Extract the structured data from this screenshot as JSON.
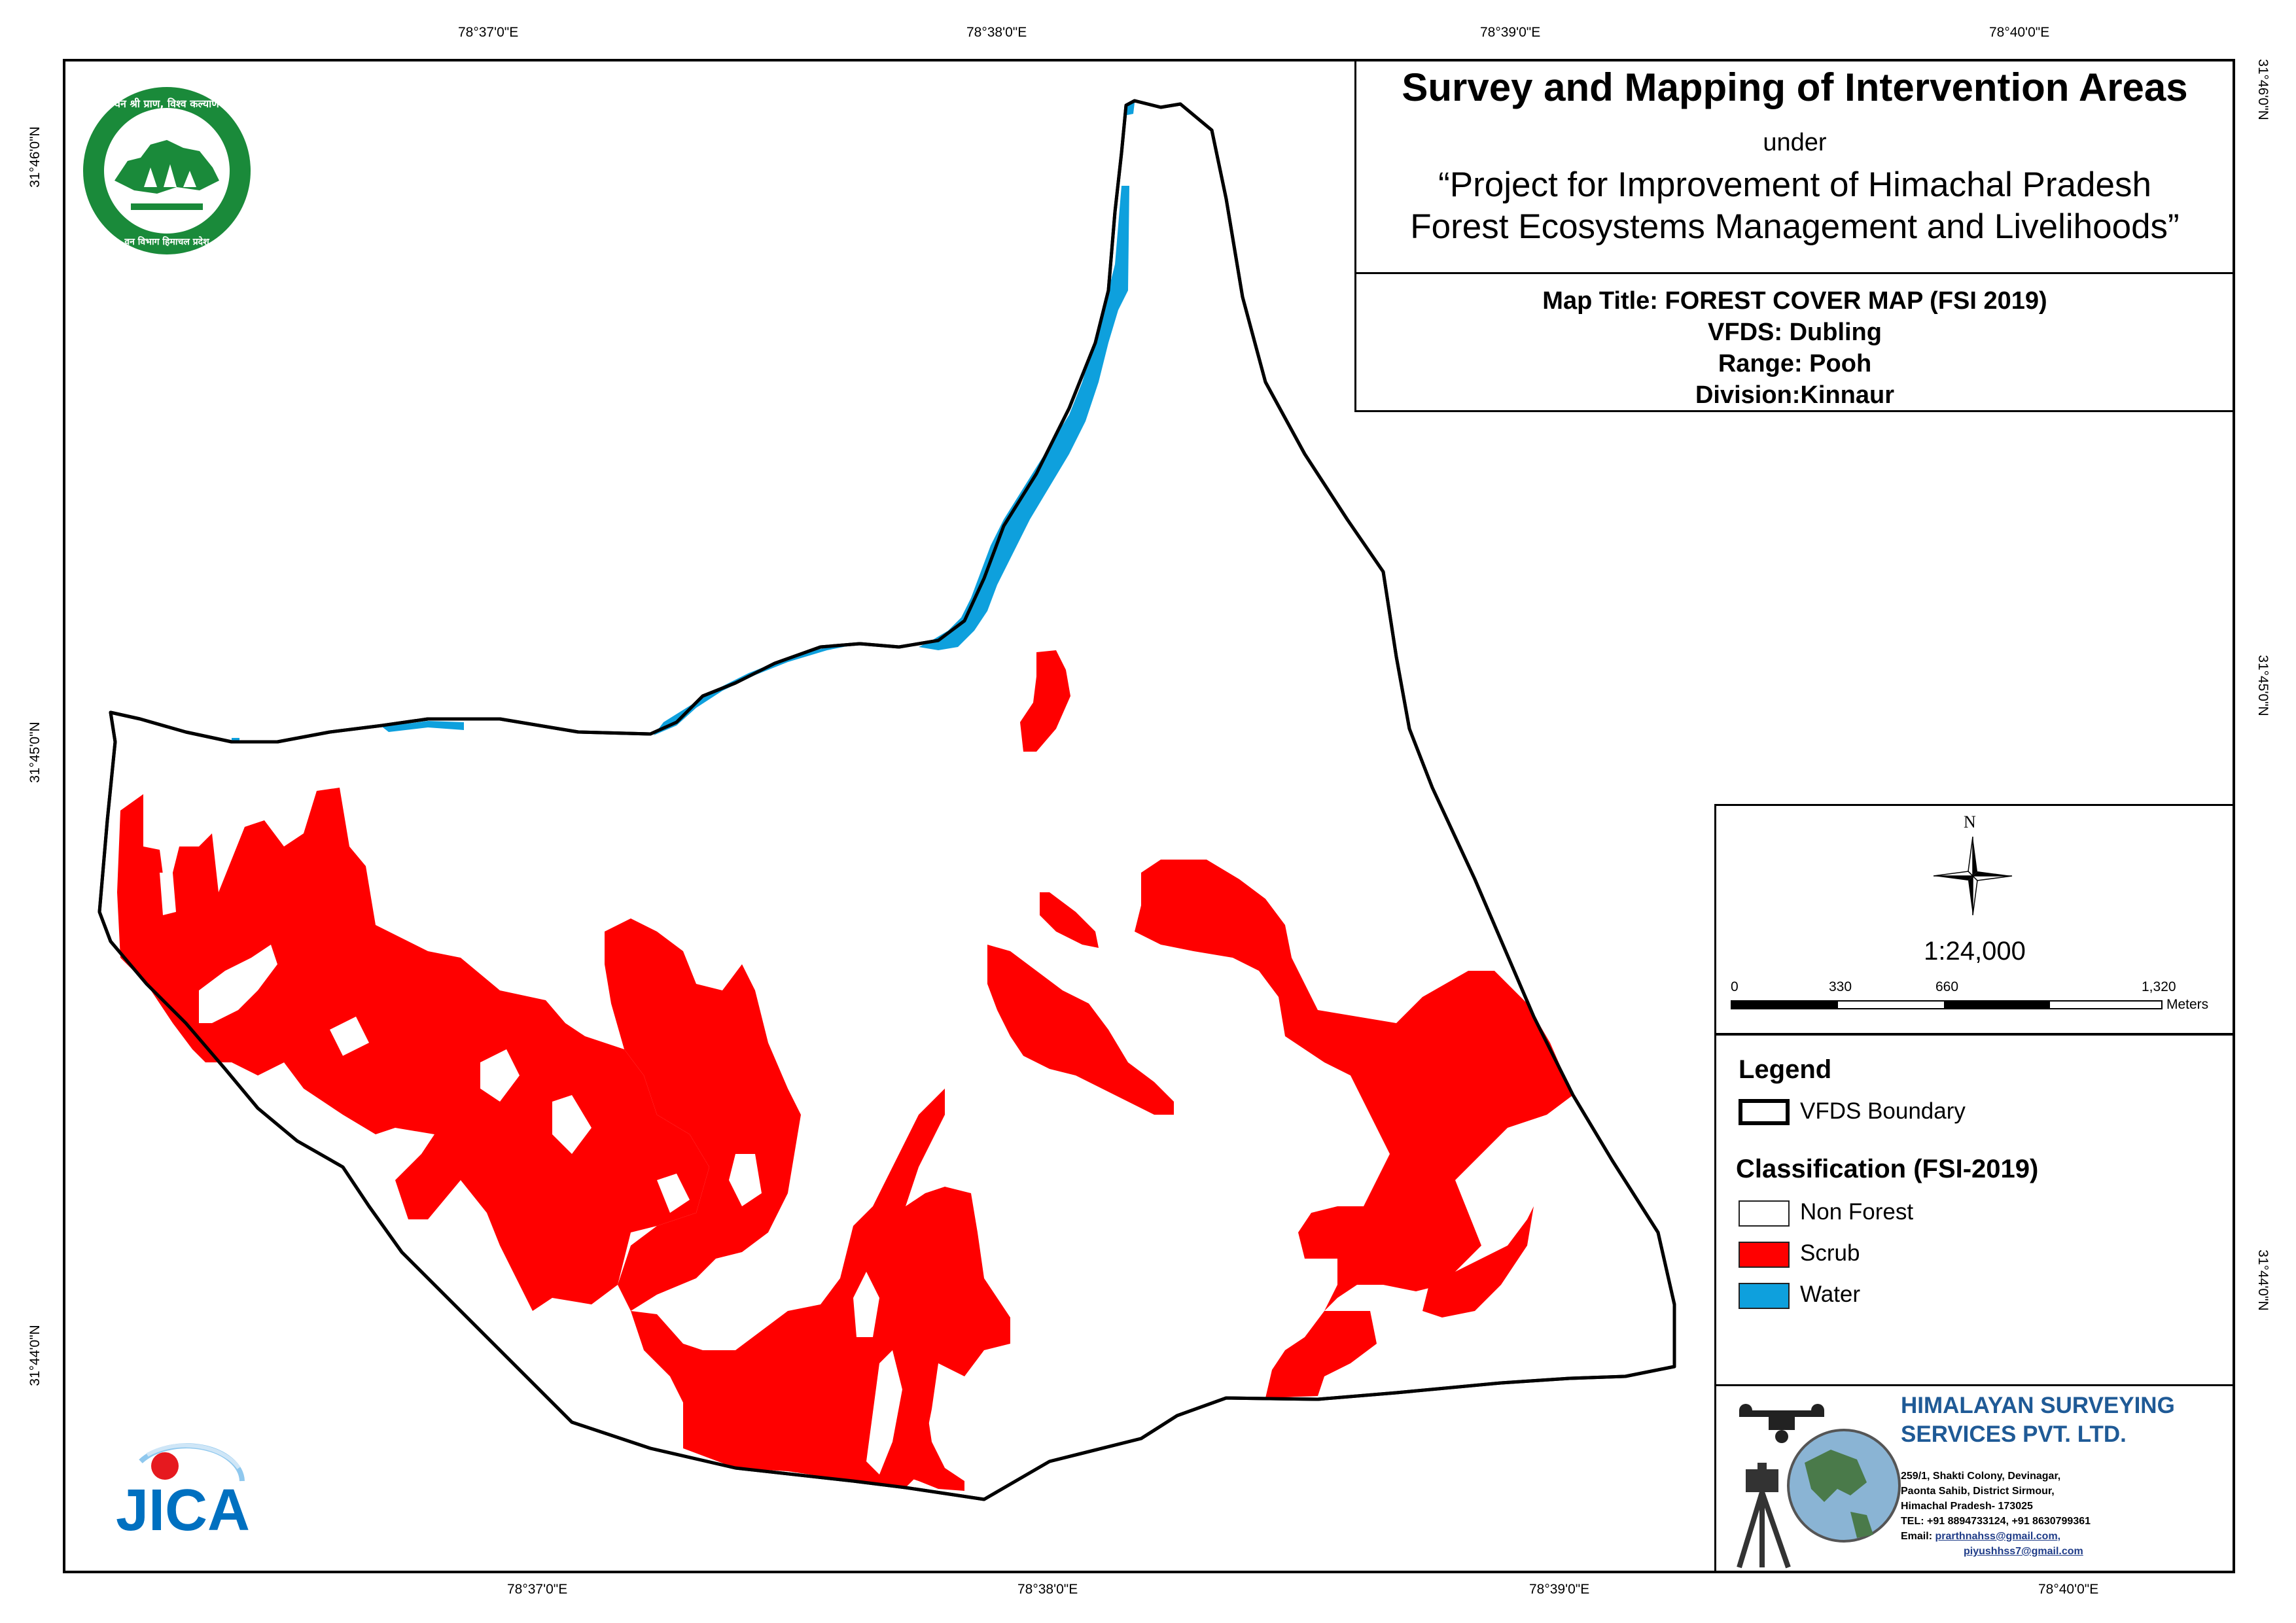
{
  "graticule": {
    "top": [
      "78°37'0\"E",
      "78°38'0\"E",
      "78°39'0\"E",
      "78°40'0\"E"
    ],
    "bottom": [
      "78°37'0\"E",
      "78°38'0\"E",
      "78°39'0\"E",
      "78°40'0\"E"
    ],
    "left": [
      "31°46'0\"N",
      "31°45'0\"N",
      "31°44'0\"N"
    ],
    "right": [
      "31°46'0\"N",
      "31°45'0\"N",
      "31°44'0\"N"
    ]
  },
  "title": {
    "main": "Survey and Mapping of Intervention Areas",
    "under": "under",
    "project_line1": "“Project for Improvement of Himachal Pradesh",
    "project_line2": "Forest Ecosystems Management and Livelihoods”"
  },
  "map_info": {
    "map_title": "Map Title: FOREST COVER MAP (FSI 2019)",
    "vfds": "VFDS: Dubling",
    "range": "Range: Pooh",
    "division": "Division:Kinnaur"
  },
  "north_arrow": {
    "letter": "N"
  },
  "scale": {
    "ratio": "1:24,000",
    "labels": [
      "0",
      "330",
      "660",
      "1,320"
    ],
    "unit": "Meters"
  },
  "legend": {
    "heading": "Legend",
    "boundary_label": "VFDS Boundary",
    "classification_heading": "Classification (FSI-2019)",
    "classes": [
      {
        "label": "Non Forest",
        "color": "#ffffff"
      },
      {
        "label": "Scrub",
        "color": "#ff0000"
      },
      {
        "label": "Water",
        "color": "#0ea0dd"
      }
    ]
  },
  "company": {
    "name_line1": "HIMALAYAN SURVEYING",
    "name_line2": "SERVICES PVT. LTD.",
    "address1": "259/1, Shakti Colony, Devinagar,",
    "address2": "Paonta Sahib, District Sirmour,",
    "address3": "Himachal Pradesh- 173025",
    "tel": "TEL: +91 8894733124, +91 8630799361",
    "email_label": "Email:",
    "email1": "prarthnahss@gmail.com,",
    "email2": "piyushhss7@gmail.com"
  },
  "logos": {
    "forest_dept_text": "वन श्री प्राण, विश्व कल्याण",
    "forest_dept_bottom": "वन विभाग हिमाचल प्रदेश",
    "jica": "JICA"
  },
  "colors": {
    "scrub": "#ff0000",
    "water": "#0ea0dd",
    "boundary": "#000000",
    "forest_logo": "#1a8a3a",
    "jica_blue": "#0070c0"
  }
}
